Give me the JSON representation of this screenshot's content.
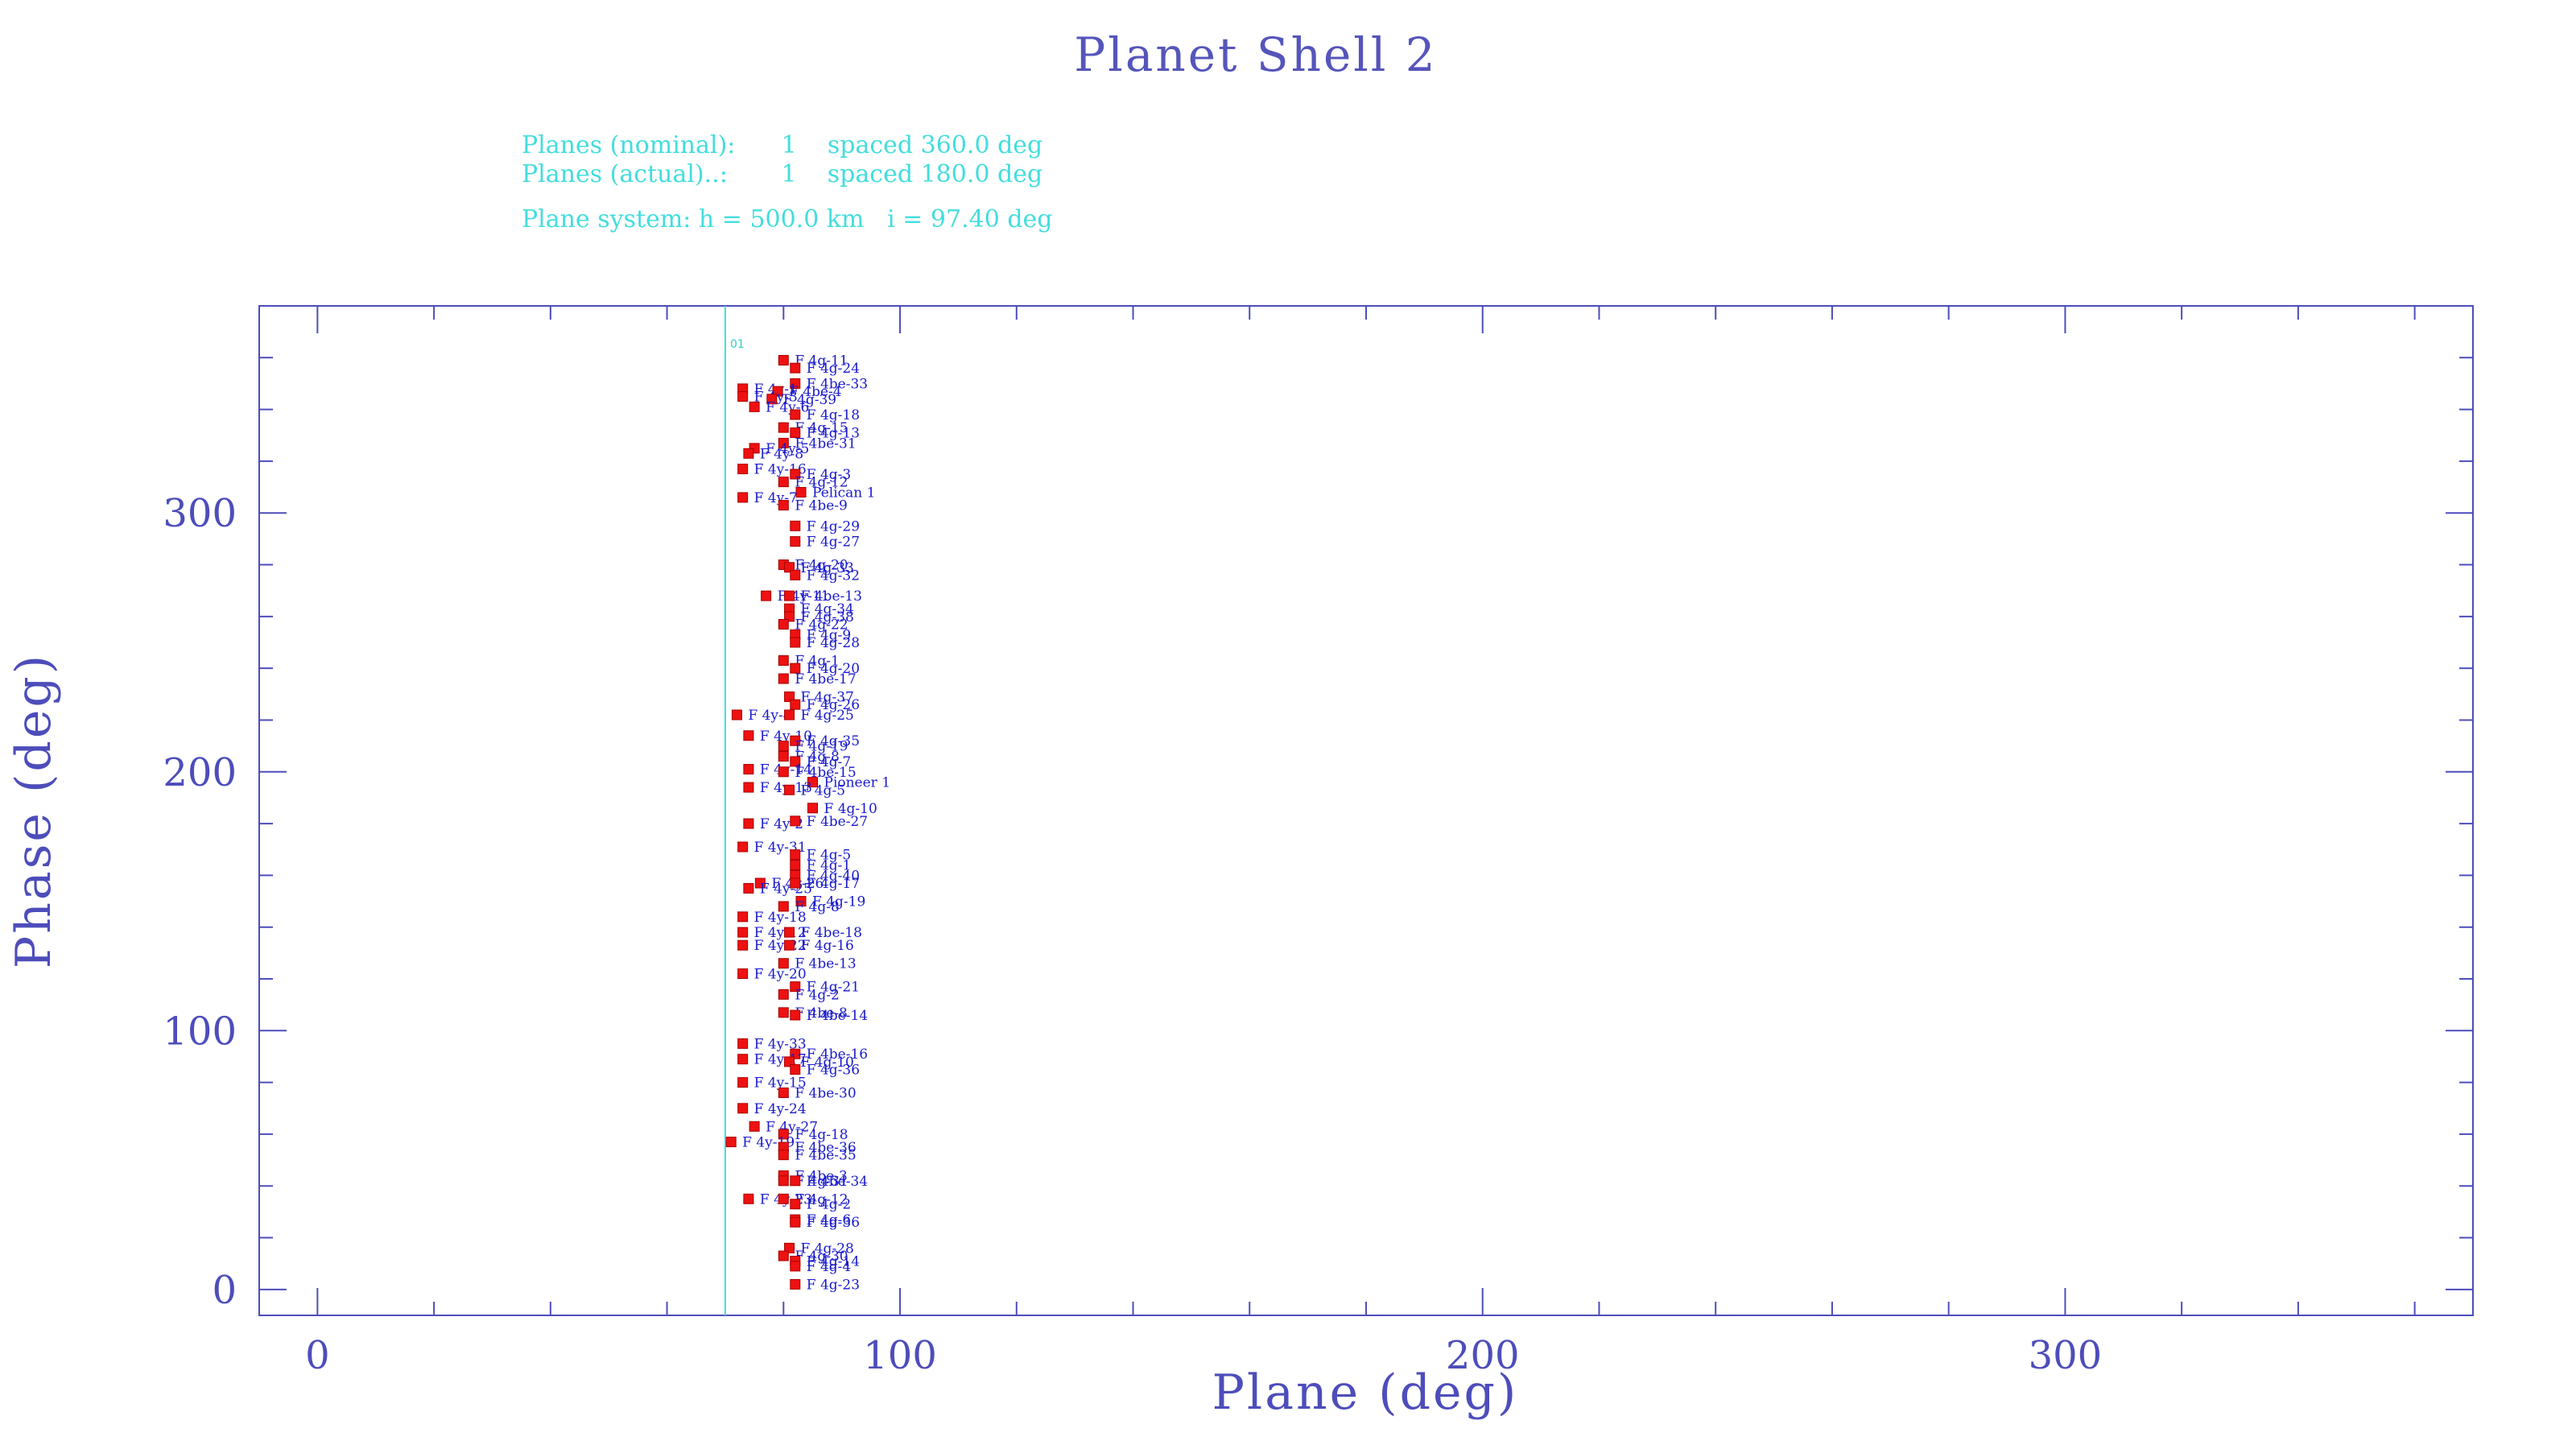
{
  "header": {
    "title": "Planet Shell 2",
    "planes_nominal": "Planes (nominal):      1    spaced 360.0 deg",
    "planes_actual": "Planes (actual)..:       1    spaced 180.0 deg",
    "plane_system": "Plane system: h = 500.0 km   i = 97.40 deg"
  },
  "colors": {
    "axes": "#4d4dbb",
    "info_text": "#44dddd",
    "marker": "#ee1111",
    "marker_label": "#1a1acc"
  },
  "chart_data": {
    "type": "scatter",
    "title": "Planet Shell 2",
    "xlabel": "Plane (deg)",
    "ylabel": "Phase (deg)",
    "xlim": [
      -10,
      370
    ],
    "ylim": [
      -10,
      380
    ],
    "x_ticks": [
      0,
      100,
      200,
      300
    ],
    "y_ticks": [
      0,
      100,
      200,
      300
    ],
    "grid": false,
    "planes": [
      {
        "label": "01",
        "x": 70
      }
    ],
    "points": [
      {
        "x": 80,
        "y": 359,
        "label": "F 4g-11"
      },
      {
        "x": 82,
        "y": 356,
        "label": "F 4g-24"
      },
      {
        "x": 82,
        "y": 350,
        "label": "F 4be-33"
      },
      {
        "x": 73,
        "y": 348,
        "label": "F 4y-1"
      },
      {
        "x": 79,
        "y": 347,
        "label": "F 4be-4"
      },
      {
        "x": 73,
        "y": 345,
        "label": "F 4y-3"
      },
      {
        "x": 78,
        "y": 344,
        "label": "F 4g-39"
      },
      {
        "x": 75,
        "y": 341,
        "label": "F 4y-6"
      },
      {
        "x": 82,
        "y": 338,
        "label": "F 4g-18"
      },
      {
        "x": 80,
        "y": 333,
        "label": "F 4g-15"
      },
      {
        "x": 82,
        "y": 331,
        "label": "F 4g-13"
      },
      {
        "x": 80,
        "y": 327,
        "label": "F 4be-31"
      },
      {
        "x": 75,
        "y": 325,
        "label": "F 4y-5"
      },
      {
        "x": 74,
        "y": 323,
        "label": "F 4y-8"
      },
      {
        "x": 73,
        "y": 317,
        "label": "F 4y-16"
      },
      {
        "x": 82,
        "y": 315,
        "label": "F 4g-3"
      },
      {
        "x": 80,
        "y": 312,
        "label": "F 4g-12"
      },
      {
        "x": 83,
        "y": 308,
        "label": "Pelican 1"
      },
      {
        "x": 73,
        "y": 306,
        "label": "F 4y-7"
      },
      {
        "x": 80,
        "y": 303,
        "label": "F 4be-9"
      },
      {
        "x": 82,
        "y": 295,
        "label": "F 4g-29"
      },
      {
        "x": 82,
        "y": 289,
        "label": "F 4g-27"
      },
      {
        "x": 80,
        "y": 280,
        "label": "F 4g-20"
      },
      {
        "x": 81,
        "y": 279,
        "label": "F 4g-33"
      },
      {
        "x": 82,
        "y": 276,
        "label": "F 4g-32"
      },
      {
        "x": 77,
        "y": 268,
        "label": "F 4y-11"
      },
      {
        "x": 81,
        "y": 268,
        "label": "F 4be-13"
      },
      {
        "x": 81,
        "y": 263,
        "label": "F 4g-34"
      },
      {
        "x": 81,
        "y": 260,
        "label": "F 4g-38"
      },
      {
        "x": 80,
        "y": 257,
        "label": "F 4g-22"
      },
      {
        "x": 82,
        "y": 253,
        "label": "F 4g-9"
      },
      {
        "x": 82,
        "y": 250,
        "label": "F 4g-28"
      },
      {
        "x": 80,
        "y": 243,
        "label": "F 4g-1"
      },
      {
        "x": 82,
        "y": 240,
        "label": "F 4g-20"
      },
      {
        "x": 80,
        "y": 236,
        "label": "F 4be-17"
      },
      {
        "x": 81,
        "y": 229,
        "label": "F 4g-37"
      },
      {
        "x": 82,
        "y": 226,
        "label": "F 4g-26"
      },
      {
        "x": 72,
        "y": 222,
        "label": "F 4y-4"
      },
      {
        "x": 81,
        "y": 222,
        "label": "F 4g-25"
      },
      {
        "x": 74,
        "y": 214,
        "label": "F 4y-10"
      },
      {
        "x": 82,
        "y": 212,
        "label": "F 4g-35"
      },
      {
        "x": 80,
        "y": 210,
        "label": "F 4g-19"
      },
      {
        "x": 80,
        "y": 206,
        "label": "F 4g-8"
      },
      {
        "x": 82,
        "y": 204,
        "label": "F 4g-7"
      },
      {
        "x": 74,
        "y": 201,
        "label": "F 4y-14"
      },
      {
        "x": 80,
        "y": 200,
        "label": "F 4be-15"
      },
      {
        "x": 85,
        "y": 196,
        "label": "Pioneer 1"
      },
      {
        "x": 74,
        "y": 194,
        "label": "F 4y-13"
      },
      {
        "x": 81,
        "y": 193,
        "label": "F 4g-5"
      },
      {
        "x": 85,
        "y": 186,
        "label": "F 4g-10"
      },
      {
        "x": 74,
        "y": 180,
        "label": "F 4y-2"
      },
      {
        "x": 82,
        "y": 181,
        "label": "F 4be-27"
      },
      {
        "x": 73,
        "y": 171,
        "label": "F 4y-31"
      },
      {
        "x": 82,
        "y": 168,
        "label": "F 4g-5"
      },
      {
        "x": 82,
        "y": 164,
        "label": "F 4g-1"
      },
      {
        "x": 82,
        "y": 160,
        "label": "F 4g-40"
      },
      {
        "x": 76,
        "y": 157,
        "label": "F 4y-26"
      },
      {
        "x": 74,
        "y": 155,
        "label": "F 4y-25"
      },
      {
        "x": 82,
        "y": 157,
        "label": "F 4g-17"
      },
      {
        "x": 83,
        "y": 150,
        "label": "F 4g-19"
      },
      {
        "x": 80,
        "y": 148,
        "label": "F 4g-8"
      },
      {
        "x": 73,
        "y": 144,
        "label": "F 4y-18"
      },
      {
        "x": 73,
        "y": 138,
        "label": "F 4y-12"
      },
      {
        "x": 81,
        "y": 138,
        "label": "F 4be-18"
      },
      {
        "x": 73,
        "y": 133,
        "label": "F 4y-22"
      },
      {
        "x": 81,
        "y": 133,
        "label": "F 4g-16"
      },
      {
        "x": 80,
        "y": 126,
        "label": "F 4be-13"
      },
      {
        "x": 73,
        "y": 122,
        "label": "F 4y-20"
      },
      {
        "x": 82,
        "y": 117,
        "label": "F 4g-21"
      },
      {
        "x": 80,
        "y": 114,
        "label": "F 4g-2"
      },
      {
        "x": 80,
        "y": 107,
        "label": "F 4be-8"
      },
      {
        "x": 82,
        "y": 106,
        "label": "F 4be-14"
      },
      {
        "x": 73,
        "y": 95,
        "label": "F 4y-33"
      },
      {
        "x": 82,
        "y": 91,
        "label": "F 4be-16"
      },
      {
        "x": 73,
        "y": 89,
        "label": "F 4y-17"
      },
      {
        "x": 81,
        "y": 88,
        "label": "F 4g-10"
      },
      {
        "x": 82,
        "y": 85,
        "label": "F 4g-36"
      },
      {
        "x": 73,
        "y": 80,
        "label": "F 4y-15"
      },
      {
        "x": 80,
        "y": 76,
        "label": "F 4be-30"
      },
      {
        "x": 73,
        "y": 70,
        "label": "F 4y-24"
      },
      {
        "x": 75,
        "y": 63,
        "label": "F 4y-27"
      },
      {
        "x": 80,
        "y": 60,
        "label": "F 4g-18"
      },
      {
        "x": 71,
        "y": 57,
        "label": "F 4y-19"
      },
      {
        "x": 80,
        "y": 55,
        "label": "F 4be-36"
      },
      {
        "x": 80,
        "y": 52,
        "label": "F 4be-35"
      },
      {
        "x": 80,
        "y": 44,
        "label": "F 4be-3"
      },
      {
        "x": 80,
        "y": 42,
        "label": "F 4g-31"
      },
      {
        "x": 82,
        "y": 42,
        "label": "F 4be-34"
      },
      {
        "x": 74,
        "y": 35,
        "label": "F 4y-23"
      },
      {
        "x": 80,
        "y": 35,
        "label": "F 4g-12"
      },
      {
        "x": 82,
        "y": 33,
        "label": "F 4g-2"
      },
      {
        "x": 82,
        "y": 27,
        "label": "F 4g-6"
      },
      {
        "x": 82,
        "y": 26,
        "label": "F 4g-36"
      },
      {
        "x": 81,
        "y": 16,
        "label": "F 4g-28"
      },
      {
        "x": 80,
        "y": 13,
        "label": "F 4g-30"
      },
      {
        "x": 82,
        "y": 11,
        "label": "F 4g-14"
      },
      {
        "x": 82,
        "y": 9,
        "label": "F 4g-4"
      },
      {
        "x": 82,
        "y": 2,
        "label": "F 4g-23"
      }
    ]
  }
}
